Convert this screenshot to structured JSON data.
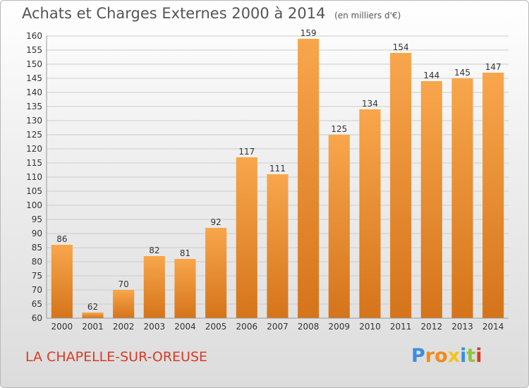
{
  "title": {
    "main": "Achats et Charges Externes 2000 à 2014",
    "unit": "(en milliers d'€)"
  },
  "commune": "LA CHAPELLE-SUR-OREUSE",
  "logo": {
    "letters": [
      "P",
      "r",
      "o",
      "x",
      "i",
      "t",
      "i"
    ],
    "colors": [
      "#3a8ede",
      "#f28a1e",
      "#f28a1e",
      "#f2c41e",
      "#3a8ede",
      "#8cc63f",
      "#d93a26"
    ]
  },
  "colors": {
    "bar_light": "#f8a64c",
    "bar_dark": "#d5741a",
    "grid": "#cccccc",
    "text": "#333333",
    "commune": "#d93a26"
  },
  "chart_data": {
    "type": "bar",
    "title": "Achats et Charges Externes 2000 à 2014",
    "categories": [
      "2000",
      "2001",
      "2002",
      "2003",
      "2004",
      "2005",
      "2006",
      "2007",
      "2008",
      "2009",
      "2010",
      "2011",
      "2012",
      "2013",
      "2014"
    ],
    "values": [
      86,
      62,
      70,
      82,
      81,
      92,
      117,
      111,
      159,
      125,
      134,
      154,
      144,
      145,
      147
    ],
    "ylim": [
      60,
      160
    ],
    "yticks": [
      60,
      65,
      70,
      75,
      80,
      85,
      90,
      95,
      100,
      105,
      110,
      115,
      120,
      125,
      130,
      135,
      140,
      145,
      150,
      155,
      160
    ],
    "grid": true,
    "xlabel": "",
    "ylabel": ""
  }
}
